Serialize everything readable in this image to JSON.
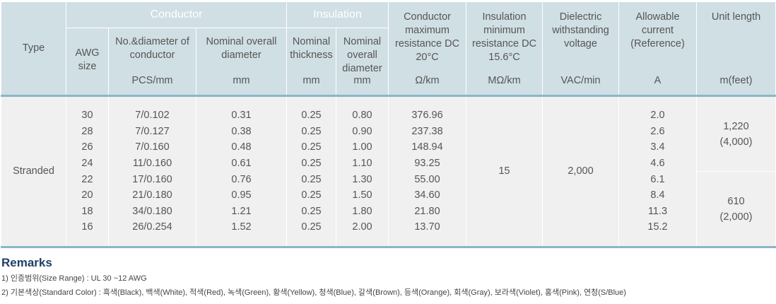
{
  "headers": {
    "type": "Type",
    "conductor_group": "Conductor",
    "insulation_group": "Insulation",
    "awg_size": "AWG size",
    "no_diameter": "No.&diameter of conductor",
    "no_diameter_unit": "PCS/mm",
    "conductor_overall_diameter": "Nominal overall diameter",
    "conductor_overall_diameter_unit": "mm",
    "nominal_thickness": "Nominal thickness",
    "nominal_thickness_unit": "mm",
    "insulation_overall_diameter": "Nominal overall diameter",
    "insulation_overall_diameter_unit": "mm",
    "conductor_resistance": "Conductor maximum resistance DC 20°C",
    "conductor_resistance_unit": "Ω/km",
    "insulation_resistance": "Insulation minimum resistance DC 15.6°C",
    "insulation_resistance_unit": "MΩ/km",
    "dielectric_voltage": "Dielectric withstanding voltage",
    "dielectric_voltage_unit": "VAC/min",
    "allowable_current": "Allowable current (Reference)",
    "allowable_current_unit": "A",
    "unit_length": "Unit length",
    "unit_length_unit": "m(feet)"
  },
  "body": {
    "type": "Stranded",
    "awg": [
      "30",
      "28",
      "26",
      "24",
      "22",
      "20",
      "18",
      "16"
    ],
    "no_diameter": [
      "7/0.102",
      "7/0.127",
      "7/0.160",
      "11/0.160",
      "17/0.160",
      "21/0.180",
      "34/0.180",
      "26/0.254"
    ],
    "conductor_overall": [
      "0.31",
      "0.38",
      "0.48",
      "0.61",
      "0.76",
      "0.95",
      "1.21",
      "1.52"
    ],
    "thickness": [
      "0.25",
      "0.25",
      "0.25",
      "0.25",
      "0.25",
      "0.25",
      "0.25",
      "0.25"
    ],
    "insulation_overall": [
      "0.80",
      "0.90",
      "1.00",
      "1.10",
      "1.30",
      "1.50",
      "1.80",
      "2.00"
    ],
    "conductor_resistance": [
      "376.96",
      "237.38",
      "148.94",
      "93.25",
      "55.00",
      "34.60",
      "21.80",
      "13.70"
    ],
    "insulation_resistance": "15",
    "dielectric_voltage": "2,000",
    "allowable_current": [
      "2.0",
      "2.6",
      "3.4",
      "4.6",
      "6.1",
      "8.4",
      "11.3",
      "15.2"
    ],
    "unit_length_top": [
      "1,220",
      "(4,000)"
    ],
    "unit_length_bottom": [
      "610",
      "(2,000)"
    ]
  },
  "remarks": {
    "title": "Remarks",
    "line1": "1) 인증범위(Size Range) : UL 30 ~12 AWG",
    "line2": "2) 기본색상(Standard Color) : 흑색(Black), 백색(White), 적색(Red), 녹색(Green), 황색(Yellow), 청색(Blue), 갈색(Brown), 등색(Orange), 회색(Gray), 보라색(Violet), 홍색(Pink), 연청(S/Blue)"
  },
  "colors": {
    "conductor_header": "#8cb6c8",
    "insulation_header": "#d5cd92",
    "header_bg": "#d0dfe4",
    "body_bg": "#f0f0f0",
    "remarks_title": "#1f3f66"
  }
}
